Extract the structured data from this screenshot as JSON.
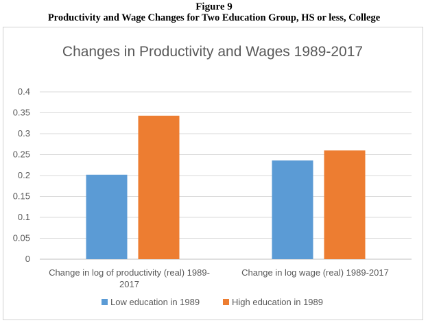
{
  "figure": {
    "number": "Figure 9",
    "caption": "Productivity and Wage Changes for Two Education Group, HS or less, College"
  },
  "chart_data": {
    "type": "bar",
    "title": "Changes in Productivity and Wages 1989-2017",
    "categories": [
      [
        "Change in log of productivity (real) 1989-",
        "2017"
      ],
      [
        "Change in log wage (real) 1989-2017"
      ]
    ],
    "series": [
      {
        "name": "Low education in 1989",
        "color": "#5b9bd5",
        "values": [
          0.202,
          0.236
        ]
      },
      {
        "name": "High education in 1989",
        "color": "#ed7d31",
        "values": [
          0.343,
          0.26
        ]
      }
    ],
    "ylim": [
      0,
      0.4
    ],
    "yticks": [
      "0",
      "0.05",
      "0.1",
      "0.15",
      "0.2",
      "0.25",
      "0.3",
      "0.35",
      "0.4"
    ],
    "grid": true,
    "legend": "bottom",
    "xlabel": "",
    "ylabel": ""
  }
}
